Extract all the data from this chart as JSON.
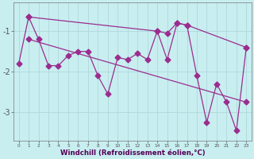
{
  "x": [
    0,
    1,
    2,
    3,
    4,
    5,
    6,
    7,
    8,
    9,
    10,
    11,
    12,
    13,
    14,
    15,
    16,
    17,
    18,
    19,
    20,
    21,
    22,
    23
  ],
  "line_main": [
    -1.8,
    -0.65,
    -1.2,
    -1.85,
    -1.85,
    -1.6,
    -1.5,
    -1.5,
    -2.1,
    -2.55,
    -1.65,
    -1.7,
    -1.55,
    -1.7,
    -1.0,
    -1.7,
    -0.8,
    -0.85,
    -2.1,
    -3.25,
    -2.3,
    -2.75,
    -3.45,
    -1.4
  ],
  "line_upper": [
    null,
    -0.65,
    null,
    null,
    null,
    null,
    null,
    null,
    null,
    null,
    null,
    null,
    null,
    null,
    -1.0,
    -1.05,
    -0.8,
    -0.85,
    null,
    null,
    null,
    null,
    null,
    -1.4
  ],
  "line_upper_x": [
    1,
    14,
    15,
    16,
    17,
    23
  ],
  "line_upper_y": [
    -0.65,
    -1.0,
    -1.05,
    -0.8,
    -0.85,
    -1.4
  ],
  "line_trend_x": [
    1,
    23
  ],
  "line_trend_y": [
    -1.2,
    -2.75
  ],
  "color": "#9b2d8e",
  "bg_color": "#c8eef0",
  "grid_color": "#b0d8dc",
  "xlabel": "Windchill (Refroidissement éolien,°C)",
  "xlim": [
    -0.5,
    23.5
  ],
  "ylim": [
    -3.7,
    -0.3
  ],
  "yticks": [
    -3,
    -2,
    -1
  ],
  "xticks": [
    0,
    1,
    2,
    3,
    4,
    5,
    6,
    7,
    8,
    9,
    10,
    11,
    12,
    13,
    14,
    15,
    16,
    17,
    18,
    19,
    20,
    21,
    22,
    23
  ]
}
